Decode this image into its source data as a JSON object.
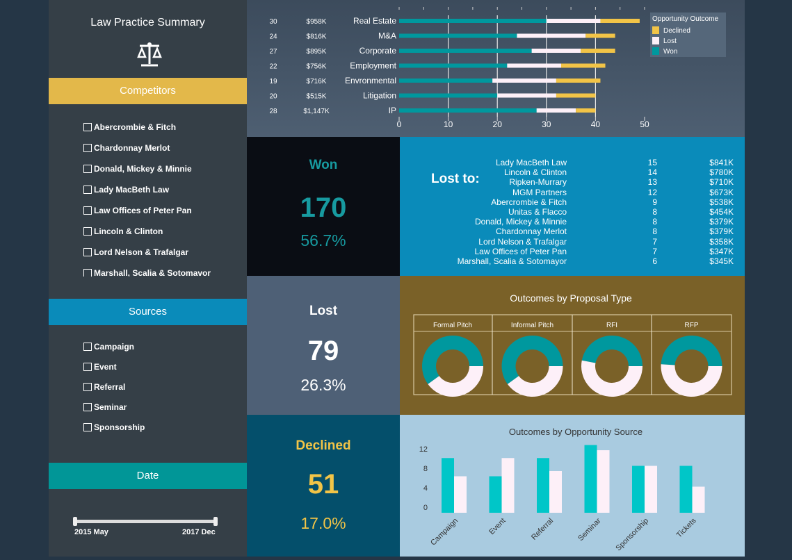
{
  "sidebar": {
    "title": "Law Practice Summary",
    "icon": "scales-of-justice-icon",
    "competitors_header": "Competitors",
    "competitors": [
      "Abercrombie & Fitch",
      "Chardonnay Merlot",
      "Donald, Mickey & Minnie",
      "Lady MacBeth Law",
      "Law Offices of Peter Pan",
      "Lincoln & Clinton",
      "Lord Nelson & Trafalgar",
      "Marshall, Scalia & Sotomavor"
    ],
    "sources_header": "Sources",
    "sources": [
      "Campaign",
      "Event",
      "Referral",
      "Seminar",
      "Sponsorship"
    ],
    "date_header": "Date",
    "date_start": "2015 May",
    "date_end": "2017 Dec"
  },
  "colors": {
    "won": "#00989e",
    "lost": "#fdf0f8",
    "declined": "#f2c447",
    "competitors": "#e3b84a",
    "sources": "#0a8bba",
    "date": "#019697"
  },
  "practice_chart": {
    "type": "bar",
    "orientation": "horizontal",
    "stacked": true,
    "xlim": [
      0,
      50
    ],
    "xticks": [
      0,
      10,
      20,
      30,
      40,
      50
    ],
    "legend_title": "Opportunity Outcome",
    "legend": [
      "Declined",
      "Lost",
      "Won"
    ],
    "rows": [
      {
        "count": "30",
        "value": "$958K",
        "category": "Real Estate",
        "won": 30,
        "lost": 11,
        "declined": 8
      },
      {
        "count": "24",
        "value": "$816K",
        "category": "M&A",
        "won": 24,
        "lost": 14,
        "declined": 6
      },
      {
        "count": "27",
        "value": "$895K",
        "category": "Corporate",
        "won": 27,
        "lost": 10,
        "declined": 7
      },
      {
        "count": "22",
        "value": "$756K",
        "category": "Employment",
        "won": 22,
        "lost": 11,
        "declined": 9
      },
      {
        "count": "19",
        "value": "$716K",
        "category": "Envronmental",
        "won": 19,
        "lost": 13,
        "declined": 9
      },
      {
        "count": "20",
        "value": "$515K",
        "category": "Litigation",
        "won": 20,
        "lost": 12,
        "declined": 8
      },
      {
        "count": "28",
        "value": "$1,147K",
        "category": "IP",
        "won": 28,
        "lost": 8,
        "declined": 4
      }
    ]
  },
  "won": {
    "label": "Won",
    "count": "170",
    "pct": "56.7%"
  },
  "lost": {
    "label": "Lost",
    "count": "79",
    "pct": "26.3%"
  },
  "declined": {
    "label": "Declined",
    "count": "51",
    "pct": "17.0%"
  },
  "lost_to": {
    "label": "Lost to:",
    "rows": [
      [
        "Lady MacBeth Law",
        "15",
        "$841K"
      ],
      [
        "Lincoln & Clinton",
        "14",
        "$780K"
      ],
      [
        "Ripken-Murrary",
        "13",
        "$710K"
      ],
      [
        "MGM Partners",
        "12",
        "$673K"
      ],
      [
        "Abercrombie & Fitch",
        "9",
        "$538K"
      ],
      [
        "Unitas & Flacco",
        "8",
        "$454K"
      ],
      [
        "Donald, Mickey & Minnie",
        "8",
        "$379K"
      ],
      [
        "Chardonnay Merlot",
        "8",
        "$379K"
      ],
      [
        "Lord Nelson & Trafalgar",
        "7",
        "$358K"
      ],
      [
        "Law Offices of Peter Pan",
        "7",
        "$347K"
      ],
      [
        "Marshall, Scalia & Sotomayor",
        "6",
        "$345K"
      ]
    ]
  },
  "chart_data": [
    {
      "type": "pie",
      "title": "Outcomes by Proposal Type",
      "donut": true,
      "categories": [
        "Formal Pitch",
        "Informal Pitch",
        "RFI",
        "RFP"
      ],
      "won_pct": [
        60,
        60,
        47,
        49
      ]
    },
    {
      "type": "bar",
      "title": "Outcomes by Opportunity Source",
      "categories": [
        "Campaign",
        "Event",
        "Referral",
        "Seminar",
        "Sponsorship",
        "Tickets"
      ],
      "yticks": [
        0,
        4,
        8,
        12
      ],
      "ylim": [
        0,
        13
      ],
      "series": [
        {
          "values": [
            10.5,
            7,
            10.5,
            13,
            9,
            9
          ]
        },
        {
          "values": [
            7,
            10.5,
            8,
            12,
            9,
            5
          ]
        }
      ]
    }
  ]
}
